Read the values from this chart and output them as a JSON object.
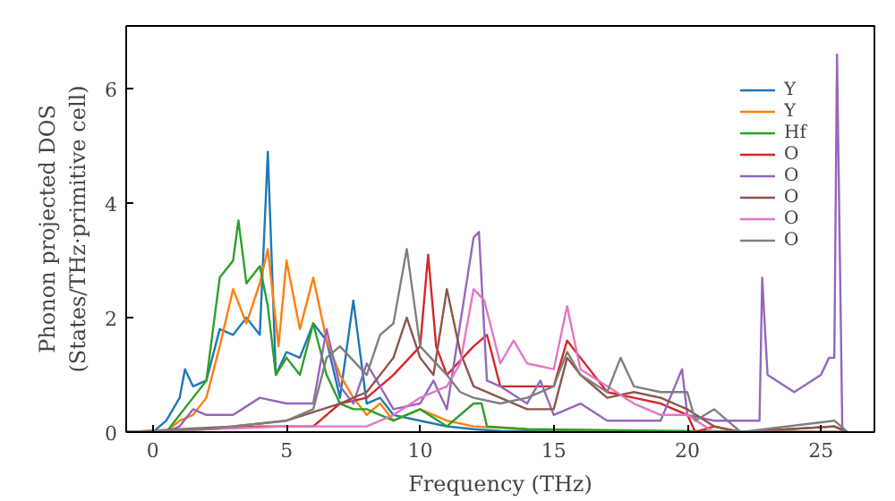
{
  "chart_data": {
    "type": "line",
    "xlabel": "Frequency (THz)",
    "ylabel": "Phonon projected DOS\n(States/THz·primitive cell)",
    "xlim": [
      -1,
      27
    ],
    "ylim": [
      0,
      7.1
    ],
    "xticks": [
      0,
      5,
      10,
      15,
      20,
      25
    ],
    "yticks": [
      0,
      2,
      4,
      6
    ],
    "grid": false,
    "legend": "top right",
    "series": [
      {
        "name": "Y",
        "color": "#1f77b4",
        "x": [
          -1,
          0,
          0.5,
          1,
          1.2,
          1.5,
          2,
          2.5,
          3,
          3.5,
          4,
          4.3,
          4.6,
          5,
          5.5,
          6,
          6.5,
          7,
          7.5,
          8,
          8.5,
          9,
          10,
          11,
          12,
          13,
          20,
          26
        ],
        "values": [
          0,
          0,
          0.2,
          0.6,
          1.1,
          0.8,
          0.9,
          1.8,
          1.7,
          2.0,
          1.7,
          4.9,
          1.0,
          1.4,
          1.3,
          1.9,
          1.6,
          0.6,
          2.3,
          0.5,
          0.6,
          0.3,
          0.2,
          0.1,
          0.05,
          0.02,
          0,
          0
        ]
      },
      {
        "name": "Y",
        "color": "#ff7f0e",
        "x": [
          -1,
          0.5,
          1,
          1.5,
          2,
          2.5,
          3,
          3.5,
          4,
          4.3,
          4.7,
          5,
          5.5,
          6,
          6.5,
          7,
          7.5,
          8,
          8.5,
          9,
          10,
          11,
          12,
          14,
          20,
          26
        ],
        "values": [
          0,
          0,
          0.2,
          0.3,
          0.6,
          1.5,
          2.5,
          1.9,
          2.6,
          3.2,
          1.5,
          3.0,
          1.8,
          2.7,
          1.6,
          1.0,
          0.6,
          0.3,
          0.5,
          0.2,
          0.4,
          0.2,
          0.1,
          0.05,
          0,
          0
        ]
      },
      {
        "name": "Hf",
        "color": "#2ca02c",
        "x": [
          -1,
          0.5,
          1,
          1.5,
          2,
          2.5,
          3,
          3.2,
          3.5,
          4,
          4.3,
          4.6,
          5,
          5.5,
          6,
          6.5,
          7,
          7.5,
          8,
          9,
          10,
          11,
          12,
          12.3,
          12.5,
          14,
          20,
          26
        ],
        "values": [
          0,
          0,
          0.3,
          0.6,
          0.9,
          2.7,
          3.0,
          3.7,
          2.6,
          2.9,
          2.2,
          1.0,
          1.3,
          1.0,
          1.9,
          1.0,
          0.5,
          0.4,
          0.4,
          0.2,
          0.4,
          0.1,
          0.5,
          0.5,
          0.1,
          0.05,
          0.02,
          0
        ]
      },
      {
        "name": "O",
        "color": "#d62728",
        "x": [
          -1,
          2,
          4,
          6,
          7,
          8,
          9,
          10,
          10.3,
          10.6,
          11,
          12,
          12.5,
          13,
          14,
          15,
          15.5,
          16,
          17,
          18,
          19,
          20,
          20.3,
          21,
          22,
          25.5,
          26
        ],
        "values": [
          0,
          0.05,
          0.1,
          0.1,
          0.5,
          0.6,
          1.0,
          1.5,
          3.1,
          1.5,
          1.0,
          1.5,
          1.7,
          0.8,
          0.8,
          0.8,
          1.6,
          1.3,
          0.7,
          0.6,
          0.5,
          0.3,
          0,
          0.1,
          0,
          0.1,
          0
        ]
      },
      {
        "name": "O",
        "color": "#9467bd",
        "x": [
          -1,
          0.5,
          1,
          1.5,
          2,
          3,
          4,
          5,
          6,
          6.5,
          7,
          7.5,
          8,
          9,
          10,
          10.5,
          11,
          12,
          12.2,
          12.5,
          13,
          14,
          14.5,
          15,
          16,
          17,
          18,
          19,
          19.8,
          20,
          21,
          22,
          22.7,
          22.8,
          23,
          24,
          25,
          25.3,
          25.5,
          25.6,
          25.8,
          26
        ],
        "values": [
          0,
          0,
          0.1,
          0.4,
          0.3,
          0.3,
          0.6,
          0.5,
          0.5,
          1.8,
          0.8,
          0.5,
          1.2,
          0.4,
          0.5,
          0.9,
          0.4,
          3.4,
          3.5,
          0.9,
          0.8,
          0.5,
          0.9,
          0.3,
          0.5,
          0.2,
          0.2,
          0.2,
          1.1,
          0.3,
          0.2,
          0.2,
          0.2,
          2.7,
          1.0,
          0.7,
          1.0,
          1.3,
          1.3,
          6.6,
          0,
          0
        ]
      },
      {
        "name": "O",
        "color": "#8c564b",
        "x": [
          -1,
          1,
          3,
          5,
          7,
          8,
          9,
          9.5,
          10,
          10.5,
          11,
          11.5,
          12,
          13,
          14,
          15,
          15.5,
          16,
          17,
          18,
          19,
          20,
          21,
          22,
          25.5,
          26
        ],
        "values": [
          0,
          0.05,
          0.1,
          0.2,
          0.5,
          0.7,
          1.3,
          2.0,
          1.3,
          1.0,
          2.5,
          1.4,
          0.8,
          0.6,
          0.4,
          0.4,
          1.3,
          1.0,
          0.6,
          0.7,
          0.6,
          0.4,
          0.1,
          0,
          0.1,
          0
        ]
      },
      {
        "name": "O",
        "color": "#e377c2",
        "x": [
          -1,
          2,
          5,
          8,
          9,
          10,
          11,
          11.5,
          12,
          12.4,
          13,
          13.5,
          14,
          15,
          15.5,
          16,
          17,
          18,
          19,
          20,
          21,
          26
        ],
        "values": [
          0,
          0.05,
          0.1,
          0.1,
          0.3,
          0.6,
          0.8,
          1.2,
          2.5,
          2.3,
          1.2,
          1.6,
          1.2,
          1.1,
          2.2,
          1.1,
          0.8,
          0.5,
          0.3,
          0.3,
          0,
          0
        ]
      },
      {
        "name": "O",
        "color": "#7f7f7f",
        "x": [
          -1,
          2,
          5,
          6,
          6.5,
          7,
          8,
          8.5,
          9,
          9.5,
          10,
          11,
          11.5,
          12,
          13,
          14,
          15,
          15.5,
          16,
          17,
          17.5,
          18,
          19,
          20,
          20.3,
          21,
          22,
          25.5,
          26
        ],
        "values": [
          0,
          0.05,
          0.2,
          0.4,
          1.3,
          1.5,
          1.0,
          1.7,
          1.9,
          3.2,
          1.5,
          1.0,
          0.7,
          0.6,
          0.5,
          0.6,
          0.8,
          1.4,
          1.0,
          0.7,
          1.3,
          0.8,
          0.7,
          0.7,
          0.2,
          0.4,
          0,
          0.2,
          0
        ]
      }
    ]
  }
}
